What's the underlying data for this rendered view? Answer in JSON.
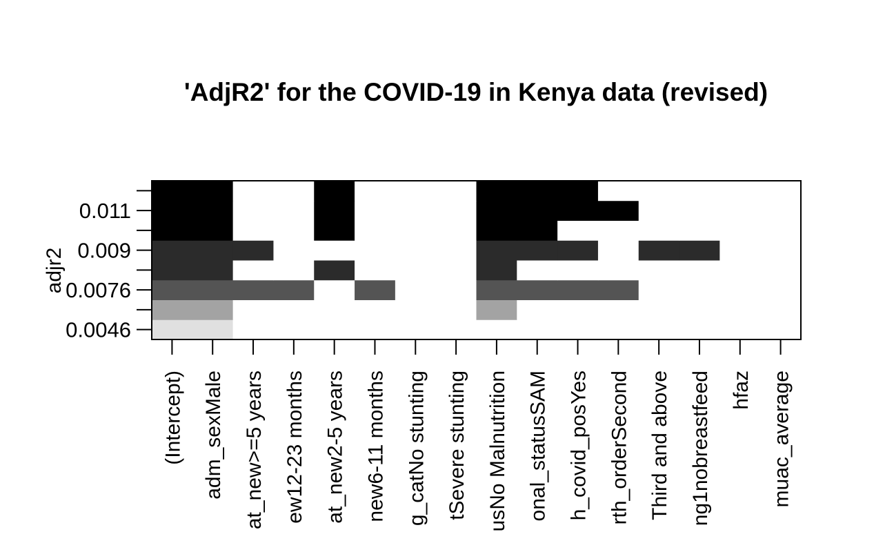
{
  "chart_data": {
    "type": "subset-grid",
    "title": "'AdjR2' for the COVID-19 in Kenya data (revised)",
    "y_label": "adjr2",
    "categories": [
      "(Intercept)",
      "adm_sexMale",
      "at_new>=5 years",
      "ew12-23 months",
      "at_new2-5 years",
      "new6-11 months",
      "g_catNo stunting",
      "tSevere stunting",
      "usNo Malnutrition",
      "onal_statusSAM",
      "h_covid_posYes",
      "rth_orderSecond",
      "Third and above",
      "ng1nobreastfeed",
      "hfaz",
      "muac_average"
    ],
    "rows": [
      {
        "label": "0.0046",
        "color": "#e0e0e0",
        "included": [
          1,
          1,
          0,
          0,
          0,
          0,
          0,
          0,
          0,
          0,
          0,
          0,
          0,
          0,
          0,
          0
        ]
      },
      {
        "label": null,
        "color": "#a3a3a3",
        "included": [
          1,
          1,
          0,
          0,
          0,
          0,
          0,
          0,
          1,
          0,
          0,
          0,
          0,
          0,
          0,
          0
        ]
      },
      {
        "label": "0.0076",
        "color": "#545454",
        "included": [
          1,
          1,
          1,
          1,
          0,
          1,
          0,
          0,
          1,
          1,
          1,
          1,
          0,
          0,
          0,
          0
        ]
      },
      {
        "label": null,
        "color": "#2b2b2b",
        "included": [
          1,
          1,
          0,
          0,
          1,
          0,
          0,
          0,
          1,
          0,
          0,
          0,
          0,
          0,
          0,
          0
        ]
      },
      {
        "label": "0.009",
        "color": "#2b2b2b",
        "included": [
          1,
          1,
          1,
          0,
          0,
          0,
          0,
          0,
          1,
          1,
          1,
          0,
          1,
          1,
          0,
          0
        ]
      },
      {
        "label": null,
        "color": "#000000",
        "included": [
          1,
          1,
          0,
          0,
          1,
          0,
          0,
          0,
          1,
          1,
          0,
          0,
          0,
          0,
          0,
          0
        ]
      },
      {
        "label": "0.011",
        "color": "#000000",
        "included": [
          1,
          1,
          0,
          0,
          1,
          0,
          0,
          0,
          1,
          1,
          1,
          1,
          0,
          0,
          0,
          0
        ]
      },
      {
        "label": null,
        "color": "#000000",
        "included": [
          1,
          1,
          0,
          0,
          1,
          0,
          0,
          0,
          1,
          1,
          1,
          0,
          0,
          0,
          0,
          0
        ]
      }
    ]
  }
}
